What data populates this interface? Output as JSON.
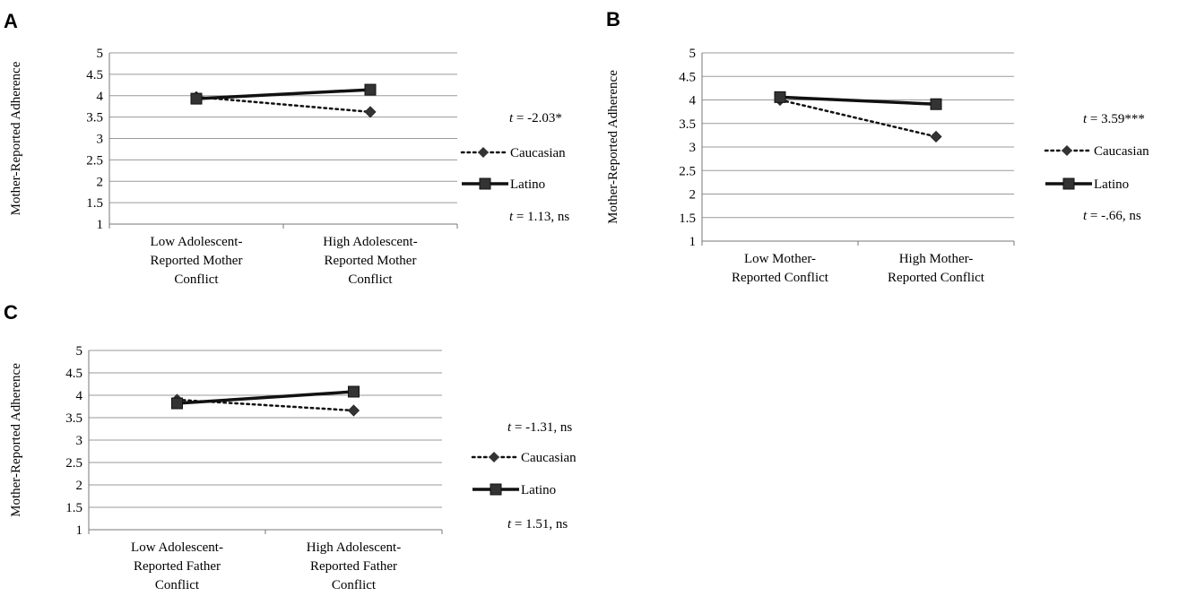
{
  "figure": {
    "panels": [
      {
        "letter": "A",
        "ylabel": "Mother-Reported Adherence",
        "ytick_labels": [
          "1",
          "1.5",
          "2",
          "2.5",
          "3",
          "3.5",
          "4",
          "4.5",
          "5"
        ],
        "categories": [
          [
            "Low Adolescent-",
            "Reported Mother",
            "Conflict"
          ],
          [
            "High Adolescent-",
            "Reported Mother",
            "Conflict"
          ]
        ],
        "legend": {
          "caucasian": "Caucasian",
          "latino": "Latino"
        },
        "stat_top": {
          "t": "t",
          "rest": " = -2.03*"
        },
        "stat_bottom": {
          "t": "t",
          "rest": " = 1.13, ns"
        }
      },
      {
        "letter": "B",
        "ylabel": "Mother-Reported Adherence",
        "ytick_labels": [
          "1",
          "1.5",
          "2",
          "2.5",
          "3",
          "3.5",
          "4",
          "4.5",
          "5"
        ],
        "categories": [
          [
            "Low Mother-",
            "Reported Conflict"
          ],
          [
            "High Mother-",
            "Reported Conflict"
          ]
        ],
        "legend": {
          "caucasian": "Caucasian",
          "latino": "Latino"
        },
        "stat_top": {
          "t": "t",
          "rest": " = 3.59***"
        },
        "stat_bottom": {
          "t": "t",
          "rest": " = -.66, ns"
        }
      },
      {
        "letter": "C",
        "ylabel": "Mother-Reported Adherence",
        "ytick_labels": [
          "1",
          "1.5",
          "2",
          "2.5",
          "3",
          "3.5",
          "4",
          "4.5",
          "5"
        ],
        "categories": [
          [
            "Low Adolescent-",
            "Reported Father",
            "Conflict"
          ],
          [
            "High Adolescent-",
            "Reported Father",
            "Conflict"
          ]
        ],
        "legend": {
          "caucasian": "Caucasian",
          "latino": "Latino"
        },
        "stat_top": {
          "t": "t",
          "rest": " = -1.31, ns"
        },
        "stat_bottom": {
          "t": "t",
          "rest": " = 1.51, ns"
        }
      }
    ]
  },
  "chart_data": [
    {
      "type": "line",
      "panel": "A",
      "categories": [
        "Low Adolescent-Reported Mother Conflict",
        "High Adolescent-Reported Mother Conflict"
      ],
      "ylabel": "Mother-Reported Adherence",
      "ylim": [
        1,
        5
      ],
      "yticks": [
        1,
        1.5,
        2,
        2.5,
        3,
        3.5,
        4,
        4.5,
        5
      ],
      "grid": true,
      "legend_position": "right",
      "series": [
        {
          "name": "Caucasian",
          "values": [
            3.97,
            3.62
          ],
          "line": "dotted",
          "marker": "diamond"
        },
        {
          "name": "Latino",
          "values": [
            3.93,
            4.14
          ],
          "line": "solid",
          "marker": "square"
        }
      ]
    },
    {
      "type": "line",
      "panel": "B",
      "categories": [
        "Low Mother-Reported Conflict",
        "High Mother-Reported Conflict"
      ],
      "ylabel": "Mother-Reported Adherence",
      "ylim": [
        1,
        5
      ],
      "yticks": [
        1,
        1.5,
        2,
        2.5,
        3,
        3.5,
        4,
        4.5,
        5
      ],
      "grid": true,
      "legend_position": "right",
      "series": [
        {
          "name": "Caucasian",
          "values": [
            4.0,
            3.22
          ],
          "line": "dotted",
          "marker": "diamond"
        },
        {
          "name": "Latino",
          "values": [
            4.06,
            3.91
          ],
          "line": "solid",
          "marker": "square"
        }
      ]
    },
    {
      "type": "line",
      "panel": "C",
      "categories": [
        "Low Adolescent-Reported Father Conflict",
        "High Adolescent-Reported Father Conflict"
      ],
      "ylabel": "Mother-Reported Adherence",
      "ylim": [
        1,
        5
      ],
      "yticks": [
        1,
        1.5,
        2,
        2.5,
        3,
        3.5,
        4,
        4.5,
        5
      ],
      "grid": true,
      "legend_position": "right",
      "series": [
        {
          "name": "Caucasian",
          "values": [
            3.9,
            3.66
          ],
          "line": "dotted",
          "marker": "diamond"
        },
        {
          "name": "Latino",
          "values": [
            3.82,
            4.08
          ],
          "line": "solid",
          "marker": "square"
        }
      ]
    }
  ],
  "colors": {
    "grid": "#9a9a9a",
    "axis": "#777777",
    "line": "#111111",
    "marker": "#333333"
  }
}
